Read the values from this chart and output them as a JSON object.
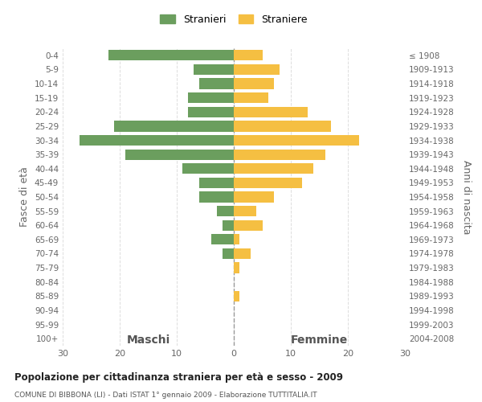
{
  "age_groups": [
    "0-4",
    "5-9",
    "10-14",
    "15-19",
    "20-24",
    "25-29",
    "30-34",
    "35-39",
    "40-44",
    "45-49",
    "50-54",
    "55-59",
    "60-64",
    "65-69",
    "70-74",
    "75-79",
    "80-84",
    "85-89",
    "90-94",
    "95-99",
    "100+"
  ],
  "birth_years": [
    "2004-2008",
    "1999-2003",
    "1994-1998",
    "1989-1993",
    "1984-1988",
    "1979-1983",
    "1974-1978",
    "1969-1973",
    "1964-1968",
    "1959-1963",
    "1954-1958",
    "1949-1953",
    "1944-1948",
    "1939-1943",
    "1934-1938",
    "1929-1933",
    "1924-1928",
    "1919-1923",
    "1914-1918",
    "1909-1913",
    "≤ 1908"
  ],
  "maschi": [
    22,
    7,
    6,
    8,
    8,
    21,
    27,
    19,
    9,
    6,
    6,
    3,
    2,
    4,
    2,
    0,
    0,
    0,
    0,
    0,
    0
  ],
  "femmine": [
    5,
    8,
    7,
    6,
    13,
    17,
    22,
    16,
    14,
    12,
    7,
    4,
    5,
    1,
    3,
    1,
    0,
    1,
    0,
    0,
    0
  ],
  "maschi_color": "#6b9e5e",
  "femmine_color": "#f5bf42",
  "title": "Popolazione per cittadinanza straniera per età e sesso - 2009",
  "subtitle": "COMUNE DI BIBBONA (LI) - Dati ISTAT 1° gennaio 2009 - Elaborazione TUTTITALIA.IT",
  "ylabel_left": "Fasce di età",
  "ylabel_right": "Anni di nascita",
  "xlabel_maschi": "Maschi",
  "xlabel_femmine": "Femmine",
  "legend_maschi": "Stranieri",
  "legend_femmine": "Straniere",
  "xlim": 30,
  "background_color": "#ffffff",
  "grid_color": "#dddddd"
}
